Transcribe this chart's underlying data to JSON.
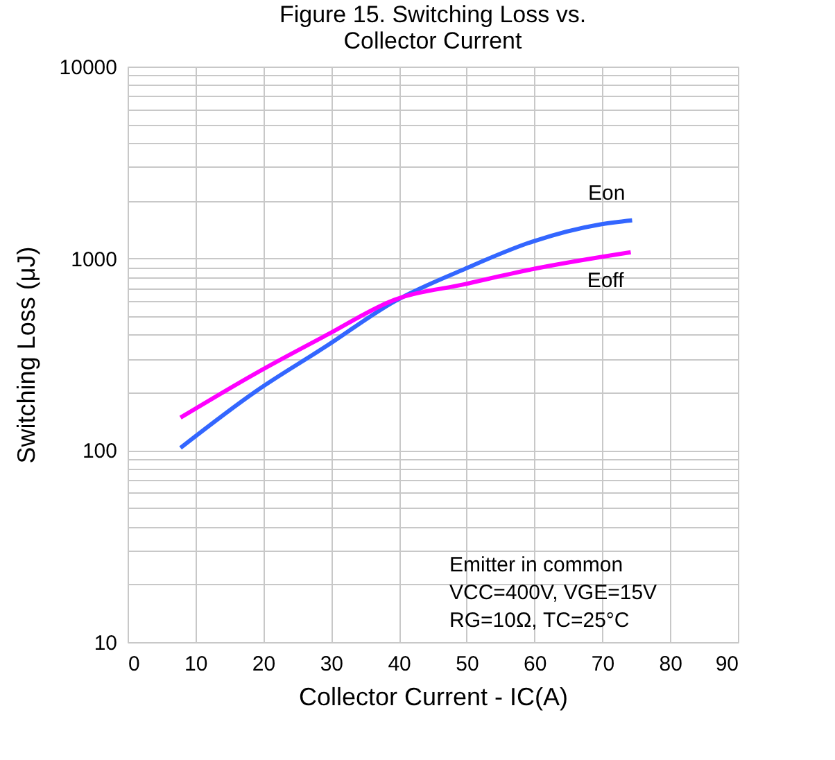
{
  "chart_data": {
    "type": "line",
    "title": [
      "Figure 15. Switching Loss vs.",
      "Collector Current"
    ],
    "xlabel": "Collector Current - IC(A)",
    "ylabel": "Switching Loss (μJ)",
    "log": "y",
    "grid": true,
    "legend": false,
    "xlim": [
      0,
      90
    ],
    "xticks": [
      0,
      10,
      20,
      30,
      40,
      50,
      60,
      70,
      80,
      90
    ],
    "ylim": [
      10,
      10000
    ],
    "yticks": [
      10,
      {
        "value": 20,
        "label": null
      },
      {
        "value": 30,
        "label": null
      },
      {
        "value": 40,
        "label": null
      },
      {
        "value": 50,
        "label": null
      },
      {
        "value": 60,
        "label": null
      },
      {
        "value": 70,
        "label": null
      },
      {
        "value": 80,
        "label": null
      },
      {
        "value": 90,
        "label": null
      },
      100,
      {
        "value": 200,
        "label": null
      },
      {
        "value": 300,
        "label": null
      },
      {
        "value": 400,
        "label": null
      },
      {
        "value": 500,
        "label": null
      },
      {
        "value": 600,
        "label": null
      },
      {
        "value": 700,
        "label": null
      },
      {
        "value": 800,
        "label": null
      },
      {
        "value": 900,
        "label": null
      },
      1000,
      {
        "value": 2000,
        "label": null
      },
      {
        "value": 3000,
        "label": null
      },
      {
        "value": 4000,
        "label": null
      },
      {
        "value": 5000,
        "label": null
      },
      {
        "value": 6000,
        "label": null
      },
      {
        "value": 7000,
        "label": null
      },
      {
        "value": 8000,
        "label": null
      },
      {
        "value": 9000,
        "label": null
      },
      10000
    ],
    "series": [
      {
        "name": "Eon",
        "color": "#3366ff",
        "x": [
          7.8,
          19.0,
          29.2,
          39.5,
          49.7,
          59.9,
          69.5,
          74.4
        ],
        "values": [
          103,
          204,
          347,
          601,
          881,
          1230,
          1500,
          1578
        ]
      },
      {
        "name": "Eoff",
        "color": "#ff00ff",
        "x": [
          7.8,
          19.0,
          29.2,
          39.5,
          49.7,
          59.9,
          74.2
        ],
        "values": [
          148,
          253,
          396,
          611,
          734,
          882,
          1077
        ]
      }
    ],
    "annotations": [
      "Emitter in common",
      "VCC=400V,  VGE=15V",
      "RG=10Ω, TC=25°C"
    ]
  }
}
